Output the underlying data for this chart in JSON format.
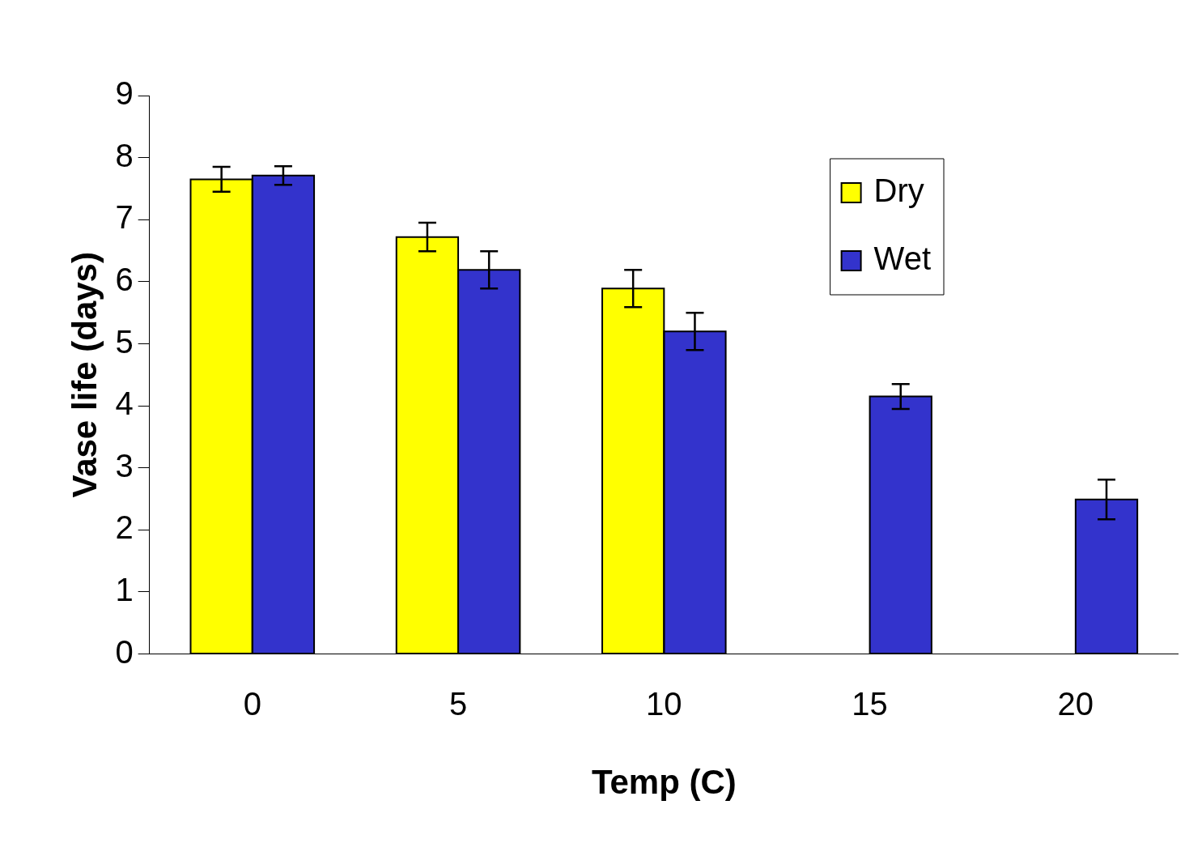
{
  "chart_data": {
    "type": "bar",
    "xlabel": "Temp (C)",
    "ylabel": "Vase life (days)",
    "categories": [
      "0",
      "5",
      "10",
      "15",
      "20"
    ],
    "series": [
      {
        "name": "Dry",
        "color": "#ffff00",
        "values": [
          7.65,
          6.72,
          5.89,
          0,
          0
        ],
        "errors": [
          0.2,
          0.23,
          0.3,
          null,
          null
        ]
      },
      {
        "name": "Wet",
        "color": "#3333cc",
        "values": [
          7.71,
          6.19,
          5.2,
          4.15,
          2.49
        ],
        "errors": [
          0.15,
          0.3,
          0.3,
          0.2,
          0.32
        ]
      }
    ],
    "ylim": [
      0,
      9
    ],
    "yticks": [
      0,
      1,
      2,
      3,
      4,
      5,
      6,
      7,
      8,
      9
    ],
    "grid": false,
    "legend": "top right"
  }
}
